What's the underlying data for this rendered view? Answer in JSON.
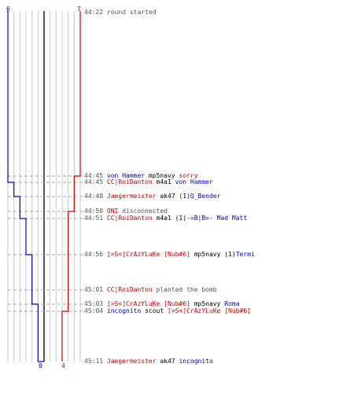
{
  "colors": {
    "blue": "#0000cc",
    "red": "#cc0000",
    "grid": "#c8c8c8",
    "dash": "#a8a8a8",
    "text": "#000000",
    "grey": "#555555"
  },
  "scores": {
    "blue_start": "6",
    "red_start": "7",
    "blue_end": "0",
    "red_end": "4"
  },
  "timeline": {
    "blue_steps": [
      6,
      5,
      4,
      3,
      2,
      1,
      0
    ],
    "red_steps": [
      7,
      6,
      5,
      4
    ]
  },
  "events": [
    {
      "time": "44:22",
      "parts": [
        {
          "text": "round started",
          "color": "grey"
        }
      ],
      "blue": 6,
      "red": 7
    },
    {
      "time": "44:45",
      "parts": [
        {
          "text": "von Hammer",
          "color": "blue"
        },
        {
          "text": " mp5navy ",
          "color": "text"
        },
        {
          "text": "sorry",
          "color": "red"
        }
      ],
      "blue": 6,
      "red": 6
    },
    {
      "time": "44:45",
      "parts": [
        {
          "text": "CC|RoiDanton",
          "color": "red"
        },
        {
          "text": " m4a1 ",
          "color": "text"
        },
        {
          "text": "von Hammer",
          "color": "blue"
        }
      ],
      "blue": 5,
      "red": 6
    },
    {
      "time": "44:48",
      "parts": [
        {
          "text": "Jaegermeister",
          "color": "red"
        },
        {
          "text": " ak47 (1)",
          "color": "text"
        },
        {
          "text": "Q_Bender",
          "color": "blue"
        }
      ],
      "blue": 4,
      "red": 6
    },
    {
      "time": "44:50",
      "parts": [
        {
          "text": "ONI",
          "color": "red"
        },
        {
          "text": " disconnected",
          "color": "grey"
        }
      ],
      "blue": 4,
      "red": 5
    },
    {
      "time": "44:51",
      "parts": [
        {
          "text": "CC|RoiDanton",
          "color": "red"
        },
        {
          "text": " m4a1 (1)",
          "color": "text"
        },
        {
          "text": "-=B|B=- Mad Matt",
          "color": "blue"
        }
      ],
      "blue": 3,
      "red": 5
    },
    {
      "time": "44:56",
      "parts": [
        {
          "text": "[>S<]CrAzYLuKe [Nub#6]",
          "color": "red"
        },
        {
          "text": " mp5navy (1)",
          "color": "text"
        },
        {
          "text": "Termi",
          "color": "blue"
        }
      ],
      "blue": 2,
      "red": 5
    },
    {
      "time": "45:01",
      "parts": [
        {
          "text": "CC|RoiDanton",
          "color": "red"
        },
        {
          "text": " planted the bomb",
          "color": "grey"
        }
      ],
      "blue": 2,
      "red": 5
    },
    {
      "time": "45:03",
      "parts": [
        {
          "text": "[>S<]CrAzYLuKe [Nub#6]",
          "color": "red"
        },
        {
          "text": " mp5navy ",
          "color": "text"
        },
        {
          "text": "Roma",
          "color": "blue"
        }
      ],
      "blue": 1,
      "red": 5
    },
    {
      "time": "45:04",
      "parts": [
        {
          "text": "incognito",
          "color": "blue"
        },
        {
          "text": " scout ",
          "color": "text"
        },
        {
          "text": "[>S<]CrAzYLuKe [Nub#6]",
          "color": "red"
        }
      ],
      "blue": 1,
      "red": 4
    },
    {
      "time": "45:11",
      "parts": [
        {
          "text": "Jaegermeister",
          "color": "red"
        },
        {
          "text": " ak47 ",
          "color": "text"
        },
        {
          "text": "incognito",
          "color": "blue"
        }
      ],
      "blue": 0,
      "red": 4
    }
  ]
}
